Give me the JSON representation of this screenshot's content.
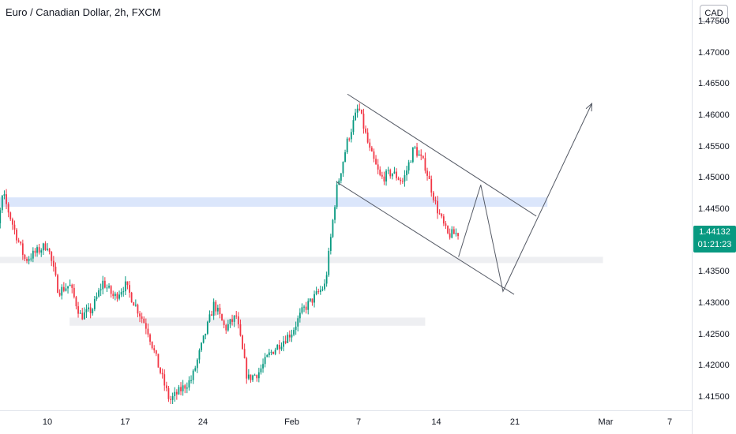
{
  "title": "Euro / Canadian Dollar, 2h, FXCM",
  "currency": "CAD",
  "last_price": {
    "value": "1.44132",
    "countdown": "01:21:23",
    "color": "#089981"
  },
  "colors": {
    "up": "#089981",
    "down": "#f23645",
    "zone_blue": "#dbe6fb",
    "zone_gray": "#eeeff2",
    "line": "#555a65"
  },
  "chart_data": {
    "type": "candlestick",
    "title": "Euro / Canadian Dollar, 2h, FXCM",
    "ylim": [
      1.413,
      1.48
    ],
    "y_ticks": [
      "1.47500",
      "1.47000",
      "1.46500",
      "1.46000",
      "1.45500",
      "1.45000",
      "1.44500",
      "1.44000",
      "1.43500",
      "1.43000",
      "1.42500",
      "1.42000",
      "1.41500"
    ],
    "x_ticks": [
      "10",
      "17",
      "24",
      "Feb",
      "7",
      "14",
      "21",
      "Mar",
      "7"
    ],
    "price_path": [
      [
        "Jan 5",
        1.436
      ],
      [
        "Jan 6",
        1.4475
      ],
      [
        "Jan 7",
        1.442
      ],
      [
        "Jan 8",
        1.437
      ],
      [
        "Jan 10",
        1.4395
      ],
      [
        "Jan 11",
        1.432
      ],
      [
        "Jan 12",
        1.433
      ],
      [
        "Jan 13",
        1.428
      ],
      [
        "Jan 14",
        1.429
      ],
      [
        "Jan 15",
        1.4335
      ],
      [
        "Jan 16",
        1.431
      ],
      [
        "Jan 17",
        1.433
      ],
      [
        "Jan 19",
        1.426
      ],
      [
        "Jan 20",
        1.42
      ],
      [
        "Jan 21",
        1.4145
      ],
      [
        "Jan 23",
        1.418
      ],
      [
        "Jan 24",
        1.424
      ],
      [
        "Jan 25",
        1.43
      ],
      [
        "Jan 26",
        1.426
      ],
      [
        "Jan 27",
        1.428
      ],
      [
        "Jan 28",
        1.418
      ],
      [
        "Jan 29",
        1.419
      ],
      [
        "Jan 30",
        1.422
      ],
      [
        "Feb 1",
        1.4255
      ],
      [
        "Feb 2",
        1.429
      ],
      [
        "Feb 3",
        1.431
      ],
      [
        "Feb 4",
        1.433
      ],
      [
        "Feb 5",
        1.448
      ],
      [
        "Feb 6",
        1.456
      ],
      [
        "Feb 7",
        1.4615
      ],
      [
        "Feb 8",
        1.4545
      ],
      [
        "Feb 9",
        1.45
      ],
      [
        "Feb 10",
        1.451
      ],
      [
        "Feb 11",
        1.4495
      ],
      [
        "Feb 12",
        1.455
      ],
      [
        "Feb 13",
        1.452
      ],
      [
        "Feb 14",
        1.4455
      ],
      [
        "Feb 15",
        1.441
      ],
      [
        "Feb 16",
        1.4413
      ]
    ],
    "zones": [
      {
        "from": "Jan 1",
        "to": "Feb 24",
        "low": 1.4455,
        "high": 1.447,
        "color": "blue"
      },
      {
        "from": "Jan 1",
        "to": "Mar 1",
        "low": 1.4365,
        "high": 1.4375,
        "color": "gray"
      },
      {
        "from": "Jan 12",
        "to": "Feb 13",
        "low": 1.4265,
        "high": 1.4278,
        "color": "gray"
      }
    ],
    "channel_upper": [
      [
        "Feb 6",
        1.4635
      ],
      [
        "Feb 23",
        1.444
      ]
    ],
    "channel_lower": [
      [
        "Feb 5",
        1.4495
      ],
      [
        "Feb 21",
        1.4315
      ]
    ],
    "projection": [
      [
        "Feb 16",
        1.4375
      ],
      [
        "Feb 18",
        1.449
      ],
      [
        "Feb 20",
        1.432
      ],
      [
        "Feb 28",
        1.462
      ]
    ],
    "grid": false
  }
}
